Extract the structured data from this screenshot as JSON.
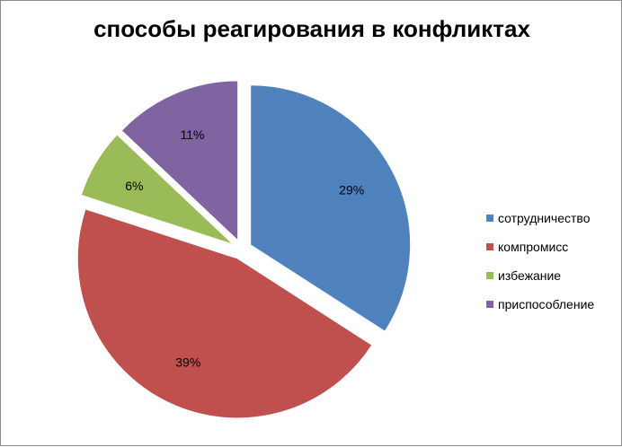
{
  "chart_data": {
    "type": "pie",
    "title": "способы реагирования в конфликтах",
    "categories": [
      "сотрудничество",
      "компромисс",
      "избежание",
      "приспособление"
    ],
    "values": [
      29,
      39,
      6,
      11
    ],
    "value_labels": [
      "29%",
      "39%",
      "6%",
      "11%"
    ],
    "colors": [
      "#4F81BD",
      "#C0504D",
      "#9BBB59",
      "#8064A2"
    ],
    "exploded": true,
    "legend_position": "right"
  }
}
